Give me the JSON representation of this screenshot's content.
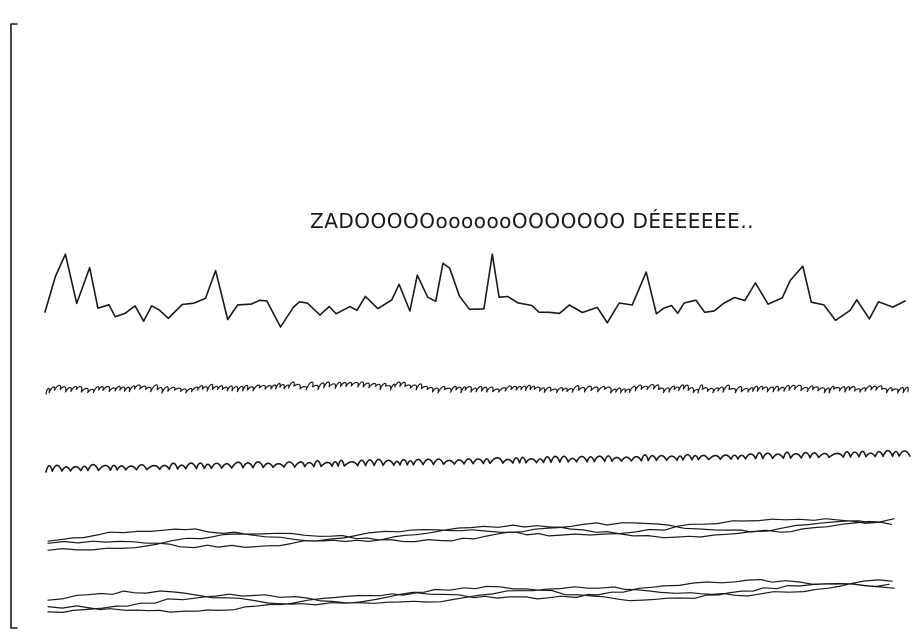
{
  "caption": {
    "text": "ZADOOOOOooooooOOOOOOO DÉEEEEEE.."
  },
  "rows": [
    {
      "name": "row-jagged-peaks",
      "style": "jagged"
    },
    {
      "name": "row-tiny-loops",
      "style": "loops"
    },
    {
      "name": "row-mmm-scribble",
      "style": "mmm"
    },
    {
      "name": "row-wavy-strands-upper",
      "style": "strands"
    },
    {
      "name": "row-wavy-strands-lower",
      "style": "strands"
    }
  ],
  "colors": {
    "ink": "#1a1a1a",
    "paper": "#ffffff"
  }
}
